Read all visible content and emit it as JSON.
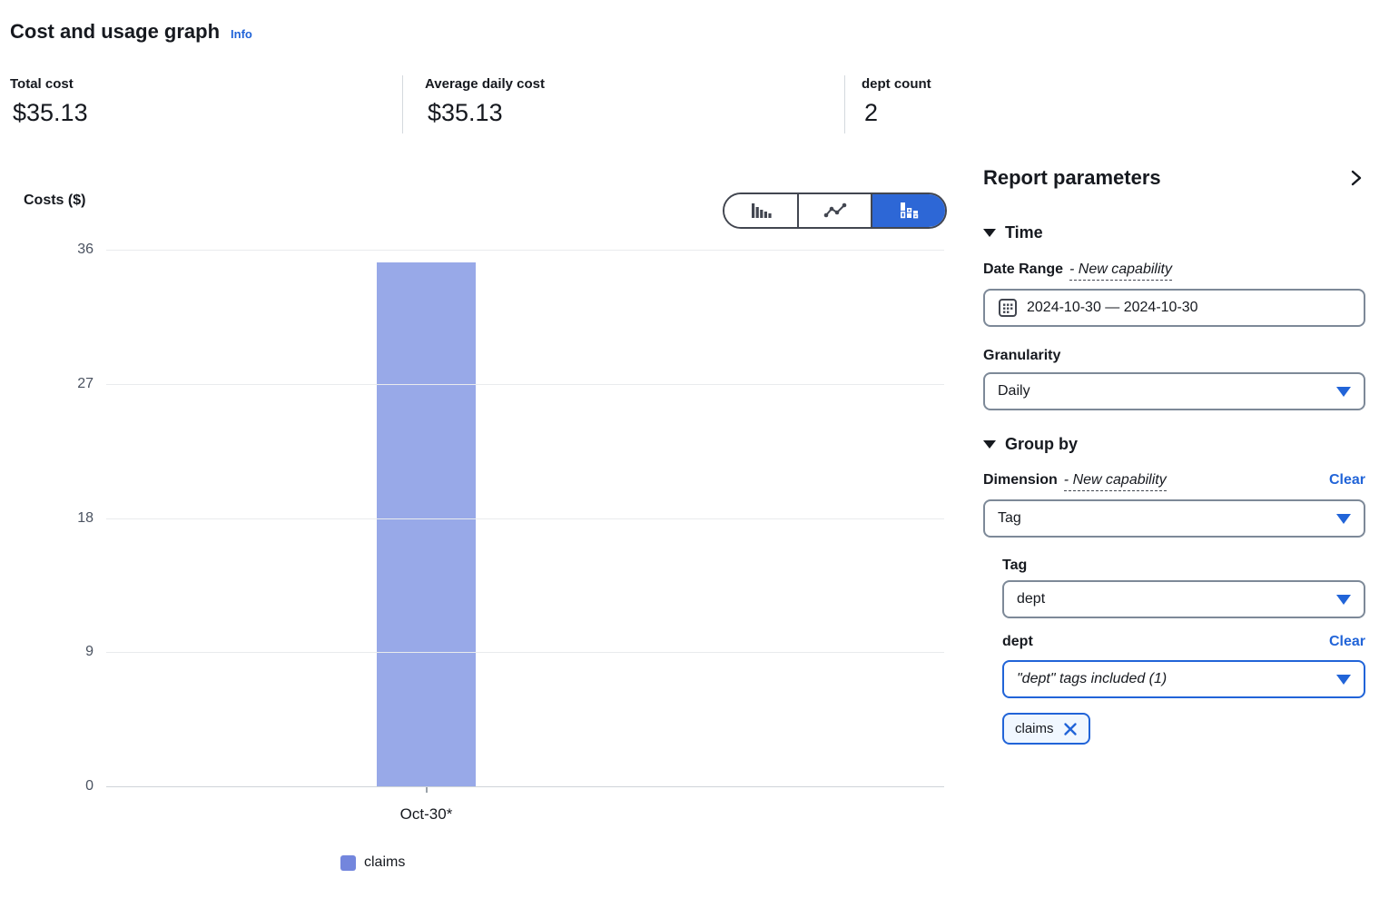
{
  "header": {
    "title": "Cost and usage graph",
    "info_label": "Info"
  },
  "stats": [
    {
      "label": "Total cost",
      "value": "$35.13"
    },
    {
      "label": "Average daily cost",
      "value": "$35.13"
    },
    {
      "label": "dept count",
      "value": "2"
    }
  ],
  "chart_toggle": {
    "options": [
      "bar-chart",
      "line-chart",
      "stacked-bar-chart"
    ],
    "selected": "stacked-bar-chart"
  },
  "chart_data": {
    "type": "bar",
    "title": "Cost and usage graph",
    "categories": [
      "Oct-30*"
    ],
    "series": [
      {
        "name": "claims",
        "values": [
          35.13
        ],
        "color": "#98a9e8",
        "legend_color": "#7386dd"
      }
    ],
    "xlabel": "",
    "ylabel": "Costs ($)",
    "ylim": [
      0,
      36
    ],
    "yticks": [
      0,
      9,
      18,
      27,
      36
    ],
    "grid": true,
    "legend_position": "bottom"
  },
  "panel": {
    "title": "Report parameters",
    "time": {
      "heading": "Time",
      "date_range_label": "Date Range",
      "new_capability": "- New capability",
      "date_value": "2024-10-30 — 2024-10-30",
      "granularity_label": "Granularity",
      "granularity_value": "Daily"
    },
    "group_by": {
      "heading": "Group by",
      "dimension_label": "Dimension",
      "new_capability": "- New capability",
      "clear_label": "Clear",
      "dimension_value": "Tag",
      "tag_label": "Tag",
      "tag_value": "dept",
      "dept_label": "dept",
      "dept_clear_label": "Clear",
      "dept_filter_value": "\"dept\" tags included (1)",
      "chip_label": "claims"
    }
  },
  "colors": {
    "accent": "#2164d8",
    "toggle_selected": "#2d67d6",
    "bar_fill": "#98a9e8",
    "legend_swatch": "#7386dd",
    "gridline": "#e9ebed",
    "input_border": "#7d8998",
    "text": "#16191f"
  }
}
